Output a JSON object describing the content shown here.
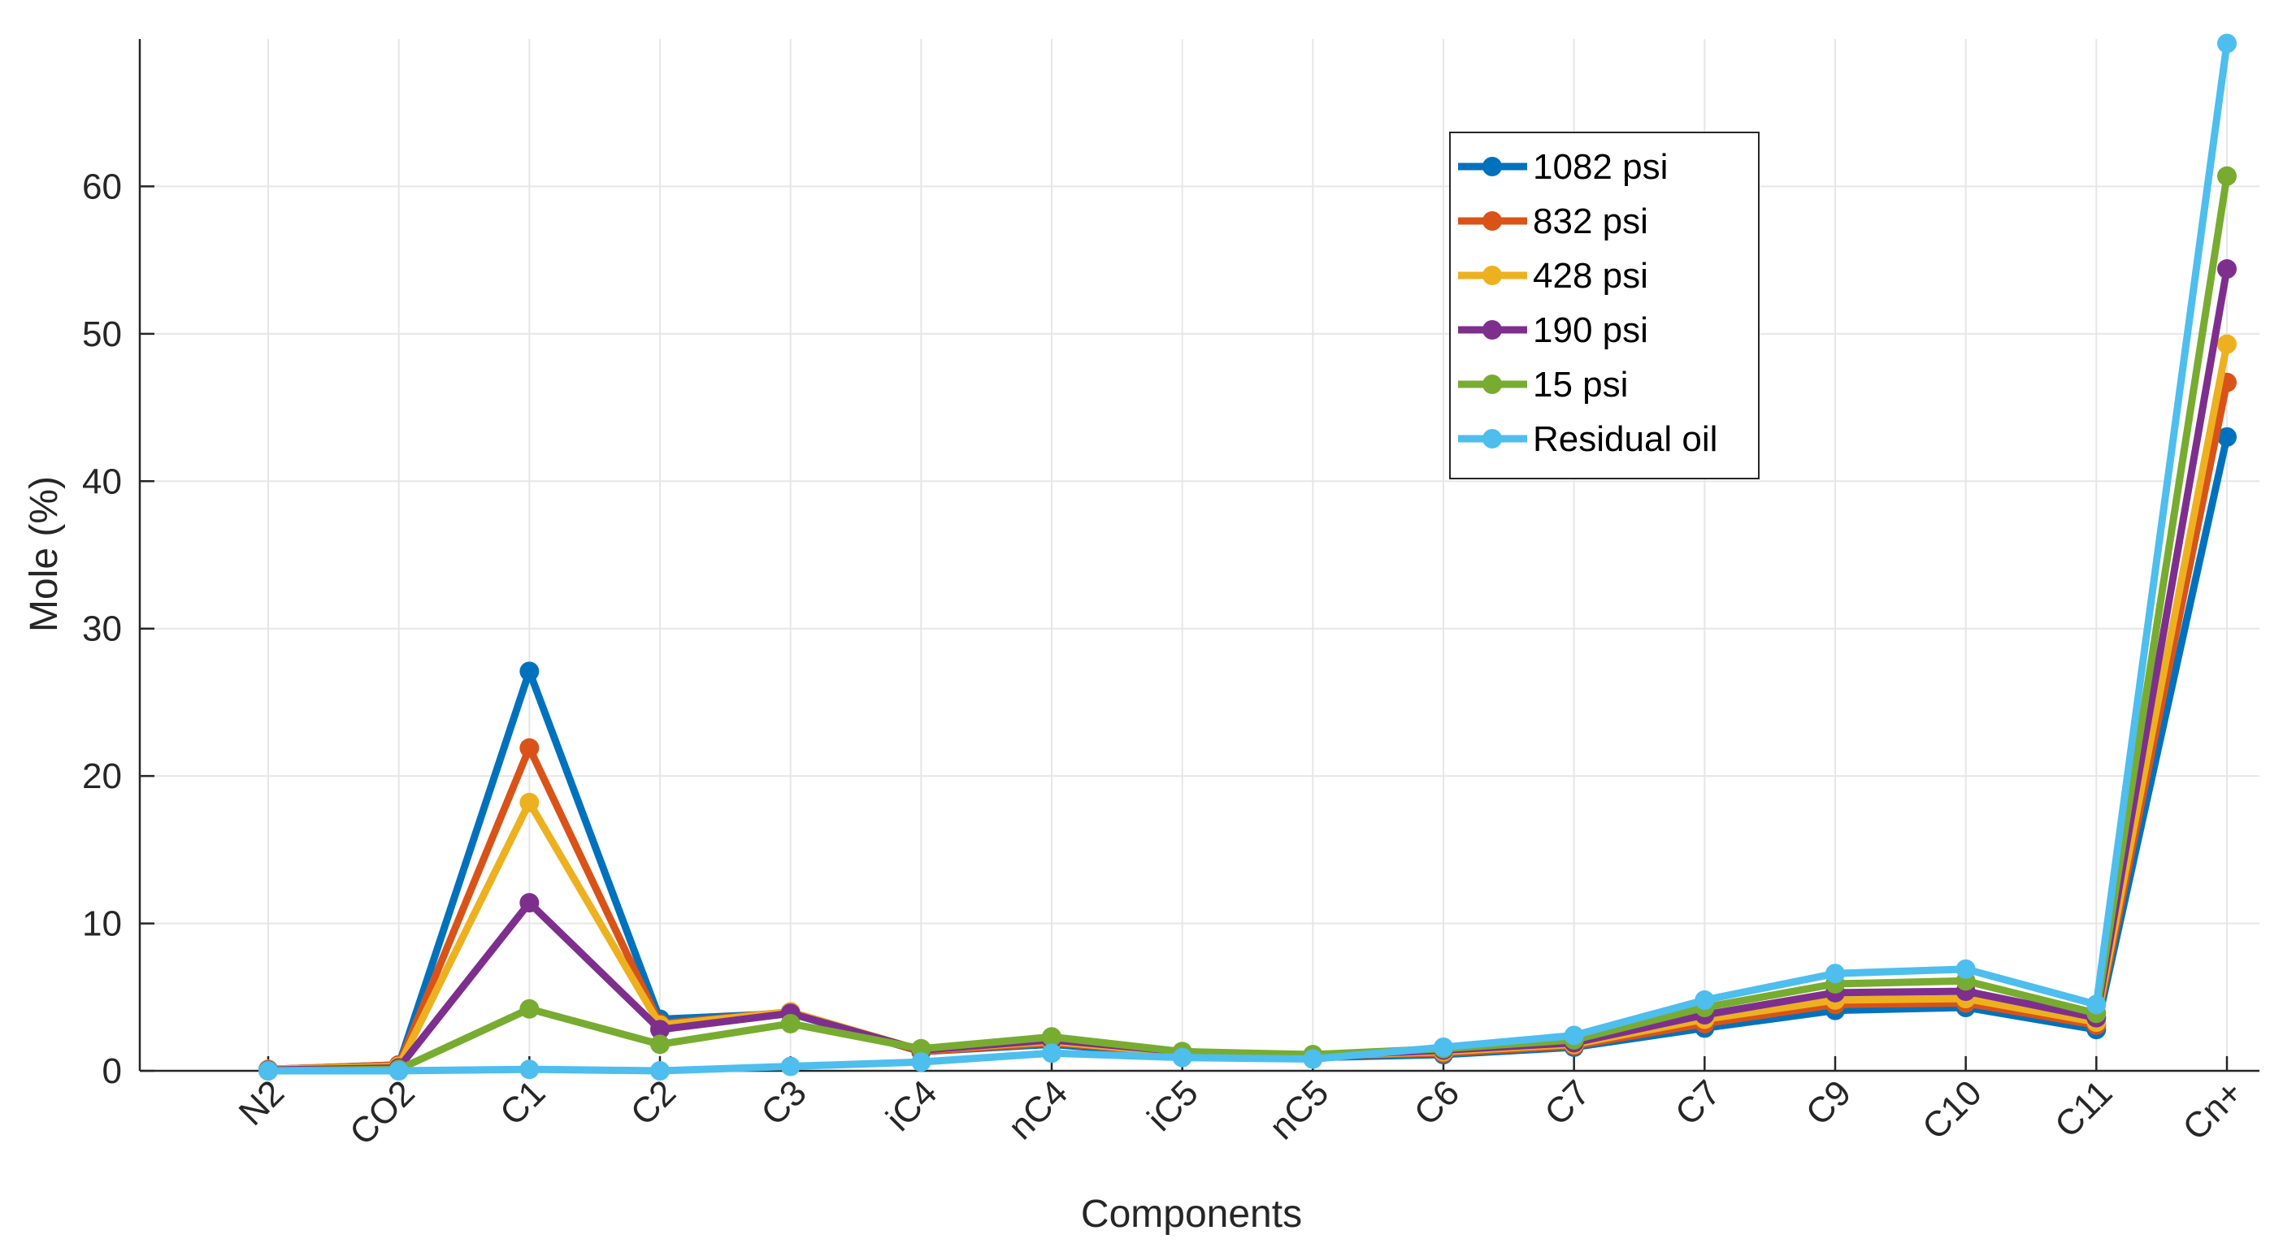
{
  "chart_data": {
    "type": "line",
    "title": "",
    "xlabel": "Components",
    "ylabel": "Mole (%)",
    "ylim": [
      0,
      70
    ],
    "yticks": [
      0,
      10,
      20,
      30,
      40,
      50,
      60
    ],
    "grid": true,
    "legend_position": "top-right",
    "categories": [
      "N2",
      "CO2",
      "C1",
      "C2",
      "C3",
      "iC4",
      "nC4",
      "iC5",
      "nC5",
      "C6",
      "C7",
      "C7",
      "C9",
      "C10",
      "C11",
      "Cn+"
    ],
    "series": [
      {
        "name": "1082 psi",
        "color": "#0072BD",
        "values": [
          0.1,
          0.4,
          27.1,
          3.5,
          3.9,
          1.3,
          1.8,
          1.1,
          0.9,
          1.1,
          1.6,
          2.9,
          4.1,
          4.3,
          2.8,
          43.0
        ]
      },
      {
        "name": "832 psi",
        "color": "#D95319",
        "values": [
          0.1,
          0.4,
          21.9,
          3.2,
          4.0,
          1.3,
          1.9,
          1.2,
          1.0,
          1.2,
          1.7,
          3.2,
          4.5,
          4.6,
          3.1,
          46.7
        ]
      },
      {
        "name": "428 psi",
        "color": "#EDB120",
        "values": [
          0.1,
          0.3,
          18.2,
          3.1,
          4.0,
          1.4,
          2.0,
          1.2,
          1.0,
          1.3,
          1.8,
          3.5,
          4.8,
          4.9,
          3.3,
          49.3
        ]
      },
      {
        "name": "190 psi",
        "color": "#7E2F8E",
        "values": [
          0.05,
          0.2,
          11.4,
          2.8,
          3.9,
          1.4,
          2.1,
          1.3,
          1.0,
          1.4,
          1.9,
          3.8,
          5.3,
          5.4,
          3.6,
          54.4
        ]
      },
      {
        "name": "15 psi",
        "color": "#77AC30",
        "values": [
          0.0,
          0.1,
          4.2,
          1.8,
          3.2,
          1.5,
          2.3,
          1.3,
          1.1,
          1.5,
          2.1,
          4.3,
          5.9,
          6.1,
          3.9,
          60.7
        ]
      },
      {
        "name": "Residual oil",
        "color": "#4DBEEE",
        "values": [
          0.0,
          0.0,
          0.1,
          0.0,
          0.3,
          0.6,
          1.2,
          0.9,
          0.8,
          1.6,
          2.4,
          4.8,
          6.6,
          6.9,
          4.5,
          69.7
        ]
      }
    ]
  }
}
